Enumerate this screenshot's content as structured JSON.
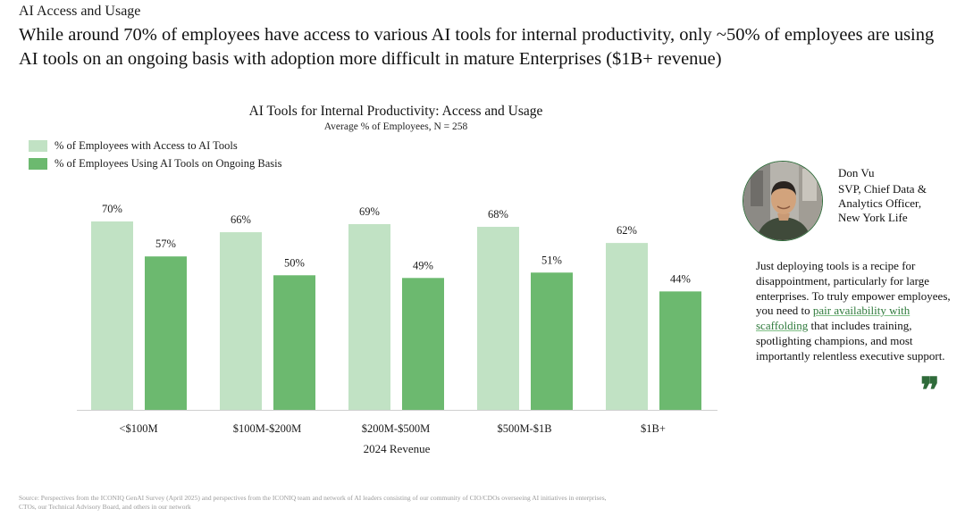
{
  "section_label": "AI Access and Usage",
  "headline": "While around 70% of employees have access to various AI tools for internal productivity, only ~50% of employees are using AI tools on an ongoing basis with adoption more difficult in mature Enterprises ($1B+ revenue)",
  "colors": {
    "access": "#c1e2c4",
    "usage": "#6cb96f",
    "axis": "#cfcfcf",
    "accent": "#2f7a3c"
  },
  "chart_data": {
    "type": "bar",
    "title": "AI Tools for Internal Productivity: Access and Usage",
    "subtitle": "Average % of Employees, N = 258",
    "xlabel": "2024 Revenue",
    "ylabel": "",
    "ylim": [
      0,
      70
    ],
    "categories": [
      "<$100M",
      "$100M-$200M",
      "$200M-$500M",
      "$500M-$1B",
      "$1B+"
    ],
    "series": [
      {
        "name": "% of Employees with Access to AI Tools",
        "values": [
          70,
          66,
          69,
          68,
          62
        ],
        "labels": [
          "70%",
          "66%",
          "69%",
          "68%",
          "62%"
        ]
      },
      {
        "name": "% of Employees Using AI Tools on Ongoing Basis",
        "values": [
          57,
          50,
          49,
          51,
          44
        ],
        "labels": [
          "57%",
          "50%",
          "49%",
          "51%",
          "44%"
        ]
      }
    ]
  },
  "quote": {
    "name": "Don Vu",
    "title": "SVP, Chief Data & Analytics Officer, New York Life",
    "text_before": "Just deploying tools is a recipe for disappointment, particularly for large enterprises. To truly empower employees, you need to ",
    "highlight": "pair availability with scaffolding",
    "text_after": " that includes training, spotlighting champions, and most importantly relentless executive support.",
    "quote_mark": "❞"
  },
  "source": "Source: Perspectives from the ICONIQ GenAI Survey (April 2025) and perspectives from the ICONIQ team and network of AI leaders consisting of our community of CIO/CDOs overseeing AI initiatives in enterprises, CTOs, our Technical Advisory Board, and others in our network"
}
